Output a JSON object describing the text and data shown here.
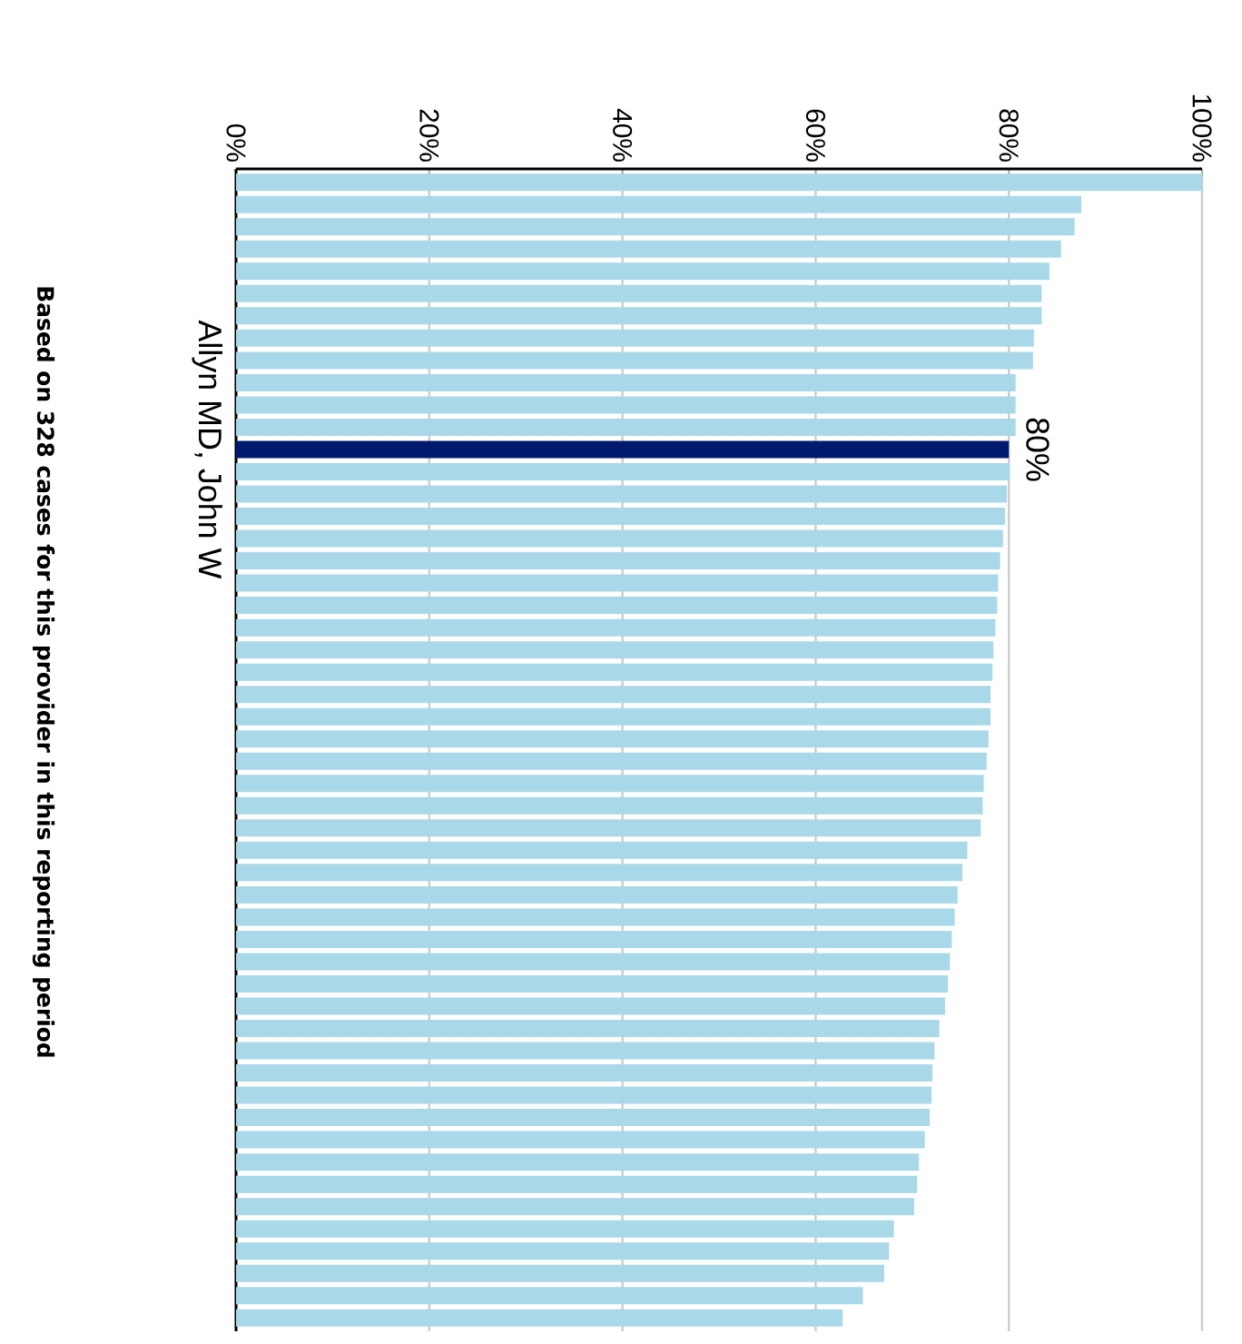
{
  "chart_data": {
    "type": "bar",
    "orientation": "horizontal",
    "categories": [
      null,
      null,
      null,
      null,
      null,
      null,
      null,
      null,
      null,
      null,
      null,
      null,
      "Allyn MD, John W",
      null,
      null,
      null,
      null,
      null,
      null,
      null,
      null,
      null,
      null,
      null,
      null,
      null,
      null,
      null,
      null,
      null,
      null,
      null,
      null,
      null,
      null,
      null,
      null,
      null,
      null,
      null,
      null,
      null,
      null,
      null,
      null,
      null,
      null,
      null,
      null,
      null,
      null,
      null
    ],
    "values": [
      100,
      87.5,
      86.8,
      85.4,
      84.2,
      83.4,
      83.4,
      82.6,
      82.5,
      80.7,
      80.7,
      80.7,
      80,
      80.1,
      79.8,
      79.6,
      79.4,
      79.1,
      78.9,
      78.8,
      78.6,
      78.4,
      78.3,
      78.1,
      78.1,
      77.9,
      77.7,
      77.4,
      77.3,
      77.1,
      75.7,
      75.2,
      74.7,
      74.4,
      74.1,
      73.9,
      73.7,
      73.4,
      72.8,
      72.3,
      72.1,
      72.0,
      71.8,
      71.3,
      70.7,
      70.5,
      70.2,
      68.1,
      67.6,
      67.1,
      64.9,
      62.8
    ],
    "colors": [
      "#a9d9e8",
      "#a9d9e8",
      "#a9d9e8",
      "#a9d9e8",
      "#a9d9e8",
      "#a9d9e8",
      "#a9d9e8",
      "#a9d9e8",
      "#a9d9e8",
      "#a9d9e8",
      "#a9d9e8",
      "#a9d9e8",
      "#001a70",
      "#a9d9e8",
      "#a9d9e8",
      "#a9d9e8",
      "#a9d9e8",
      "#a9d9e8",
      "#a9d9e8",
      "#a9d9e8",
      "#a9d9e8",
      "#a9d9e8",
      "#a9d9e8",
      "#a9d9e8",
      "#a9d9e8",
      "#a9d9e8",
      "#a9d9e8",
      "#a9d9e8",
      "#a9d9e8",
      "#a9d9e8",
      "#a9d9e8",
      "#a9d9e8",
      "#a9d9e8",
      "#a9d9e8",
      "#a9d9e8",
      "#a9d9e8",
      "#a9d9e8",
      "#a9d9e8",
      "#a9d9e8",
      "#a9d9e8",
      "#a9d9e8",
      "#a9d9e8",
      "#a9d9e8",
      "#a9d9e8",
      "#a9d9e8",
      "#a9d9e8",
      "#a9d9e8",
      "#a9d9e8",
      "#a9d9e8",
      "#a9d9e8",
      "#a9d9e8",
      "#a9d9e8"
    ],
    "value_labels": [
      null,
      null,
      null,
      null,
      null,
      null,
      null,
      null,
      null,
      null,
      null,
      null,
      "80%",
      null,
      null,
      null,
      null,
      null,
      null,
      null,
      null,
      null,
      null,
      null,
      null,
      null,
      null,
      null,
      null,
      null,
      null,
      null,
      null,
      null,
      null,
      null,
      null,
      null,
      null,
      null,
      null,
      null,
      null,
      null,
      null,
      null,
      null,
      null,
      null,
      null,
      null,
      null
    ],
    "xlim": [
      0,
      100
    ],
    "xticks": [
      {
        "value": 0,
        "label": "0%"
      },
      {
        "value": 20,
        "label": "20%"
      },
      {
        "value": 40,
        "label": "40%"
      },
      {
        "value": 60,
        "label": "60%"
      },
      {
        "value": 80,
        "label": "80%"
      },
      {
        "value": 100,
        "label": "100%"
      }
    ],
    "grid": "x",
    "annotations": [
      "Based on 328 cases for this provider in this reporting period"
    ]
  }
}
